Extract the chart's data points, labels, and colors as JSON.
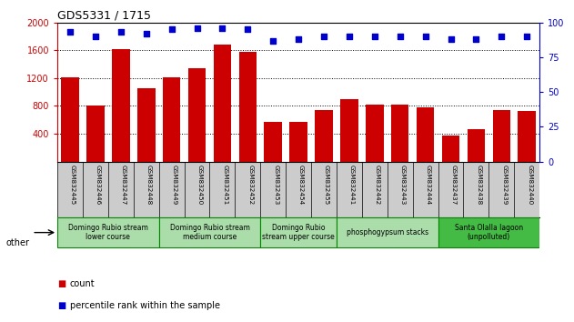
{
  "title": "GDS5331 / 1715",
  "categories": [
    "GSM832445",
    "GSM832446",
    "GSM832447",
    "GSM832448",
    "GSM832449",
    "GSM832450",
    "GSM832451",
    "GSM832452",
    "GSM832453",
    "GSM832454",
    "GSM832455",
    "GSM832441",
    "GSM832442",
    "GSM832443",
    "GSM832444",
    "GSM832437",
    "GSM832438",
    "GSM832439",
    "GSM832440"
  ],
  "counts": [
    1210,
    800,
    1620,
    1060,
    1210,
    1340,
    1680,
    1580,
    570,
    565,
    740,
    900,
    820,
    820,
    780,
    370,
    460,
    740,
    730
  ],
  "percentile_ranks": [
    93,
    90,
    93,
    92,
    95,
    96,
    96,
    95,
    87,
    88,
    90,
    90,
    90,
    90,
    90,
    88,
    88,
    90,
    90
  ],
  "bar_color": "#cc0000",
  "dot_color": "#0000cc",
  "ylim_left": [
    0,
    2000
  ],
  "ylim_right": [
    0,
    100
  ],
  "yticks_left": [
    400,
    800,
    1200,
    1600,
    2000
  ],
  "yticks_right": [
    0,
    25,
    50,
    75,
    100
  ],
  "groups": [
    {
      "label": "Domingo Rubio stream\nlower course",
      "start": 0,
      "end": 4,
      "color": "#aaddaa"
    },
    {
      "label": "Domingo Rubio stream\nmedium course",
      "start": 4,
      "end": 8,
      "color": "#aaddaa"
    },
    {
      "label": "Domingo Rubio\nstream upper course",
      "start": 8,
      "end": 11,
      "color": "#aaddaa"
    },
    {
      "label": "phosphogypsum stacks",
      "start": 11,
      "end": 15,
      "color": "#aaddaa"
    },
    {
      "label": "Santa Olalla lagoon\n(unpolluted)",
      "start": 15,
      "end": 19,
      "color": "#44bb44"
    }
  ],
  "other_label": "other",
  "legend_count_label": "count",
  "legend_pct_label": "percentile rank within the sample",
  "background_color": "#ffffff",
  "tick_area_color": "#cccccc",
  "group_border_color": "#008800"
}
